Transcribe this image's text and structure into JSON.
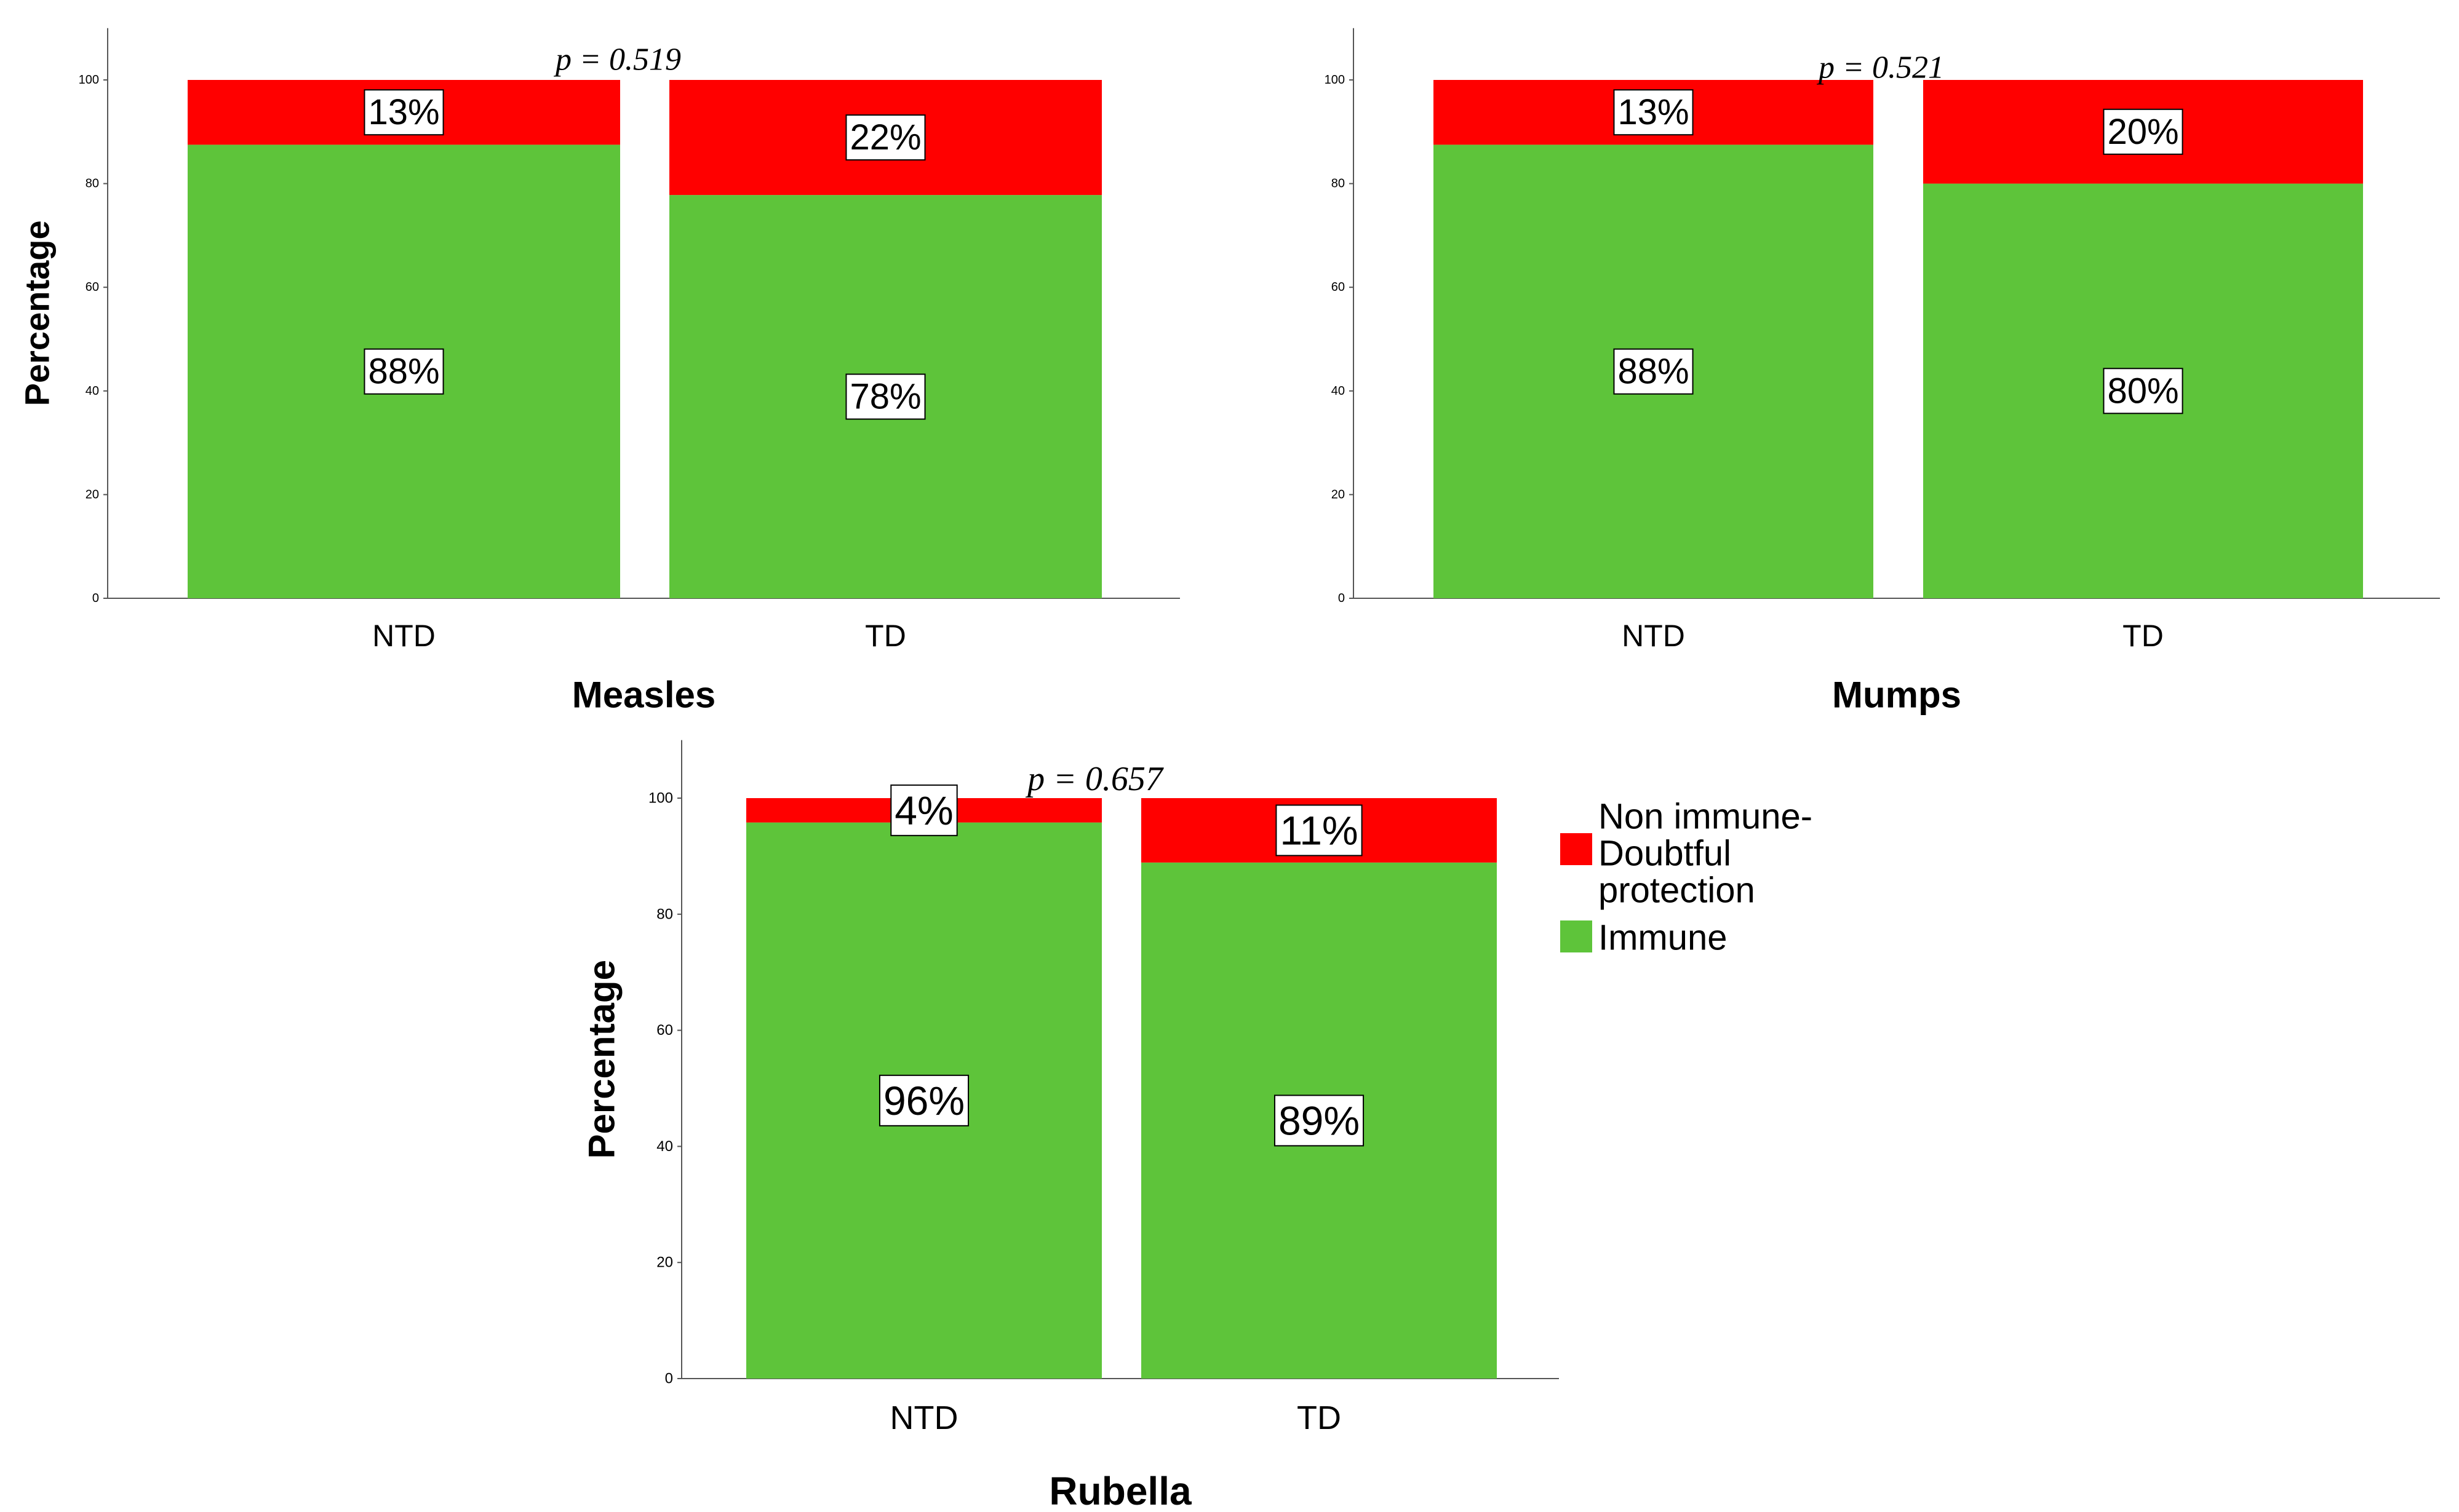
{
  "colors": {
    "immune": "#5ec43a",
    "non_immune": "#ff0000",
    "axis": "#555555",
    "label_box_border": "#000000",
    "background": "#ffffff"
  },
  "legend": {
    "items": [
      {
        "label_lines": [
          "Non immune-",
          "Doubtful",
          "protection"
        ],
        "color_key": "non_immune"
      },
      {
        "label_lines": [
          "Immune"
        ],
        "color_key": "immune"
      }
    ]
  },
  "chart_data": [
    {
      "type": "bar",
      "stacked": true,
      "title": "Measles",
      "ylabel": "Percentage",
      "xlabel": "",
      "ylim": [
        0,
        110
      ],
      "yticks": [
        0,
        20,
        40,
        60,
        80,
        100
      ],
      "categories": [
        "NTD",
        "TD"
      ],
      "annotation": "p = 0.519",
      "series": [
        {
          "name": "Immune",
          "color_key": "immune",
          "values": [
            87.5,
            77.8
          ],
          "labels": [
            "88%",
            "78%"
          ]
        },
        {
          "name": "Non immune-Doubtful protection",
          "color_key": "non_immune",
          "values": [
            12.5,
            22.2
          ],
          "labels": [
            "13%",
            "22%"
          ]
        }
      ]
    },
    {
      "type": "bar",
      "stacked": true,
      "title": "Mumps",
      "ylabel": "",
      "xlabel": "",
      "ylim": [
        0,
        110
      ],
      "yticks": [
        0,
        20,
        40,
        60,
        80,
        100
      ],
      "categories": [
        "NTD",
        "TD"
      ],
      "annotation": "p = 0.521",
      "series": [
        {
          "name": "Immune",
          "color_key": "immune",
          "values": [
            87.5,
            80
          ],
          "labels": [
            "88%",
            "80%"
          ]
        },
        {
          "name": "Non immune-Doubtful protection",
          "color_key": "non_immune",
          "values": [
            12.5,
            20
          ],
          "labels": [
            "13%",
            "20%"
          ]
        }
      ]
    },
    {
      "type": "bar",
      "stacked": true,
      "title": "Rubella",
      "ylabel": "Percentage",
      "xlabel": "",
      "ylim": [
        0,
        110
      ],
      "yticks": [
        0,
        20,
        40,
        60,
        80,
        100
      ],
      "categories": [
        "NTD",
        "TD"
      ],
      "annotation": "p = 0.657",
      "series": [
        {
          "name": "Immune",
          "color_key": "immune",
          "values": [
            95.8,
            88.9
          ],
          "labels": [
            "96%",
            "89%"
          ]
        },
        {
          "name": "Non immune-Doubtful protection",
          "color_key": "non_immune",
          "values": [
            4.2,
            11.1
          ],
          "labels": [
            "4%",
            "11%"
          ]
        }
      ]
    }
  ]
}
